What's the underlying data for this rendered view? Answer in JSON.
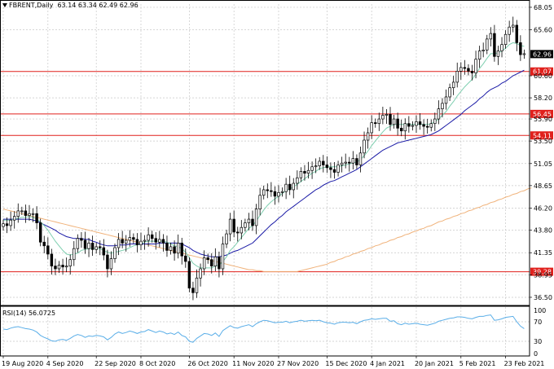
{
  "header": {
    "symbol": "FBRENT",
    "timeframe": ",Daily",
    "ohlc": "63.14 63.34 62.49 62.96"
  },
  "rsi": {
    "label": "RSI(14)",
    "value": "56.0725",
    "levels": [
      70,
      30
    ],
    "tick_labels": [
      "100",
      "70",
      "30",
      "0"
    ]
  },
  "colors": {
    "bull_candle": "#000000",
    "bear_candle": "#000000",
    "ma_fast": "#7ecfb0",
    "ma_mid": "#1a1aa6",
    "ma_slow": "#f0b27a",
    "hline": "#e0201c",
    "rsi_line": "#5aaee8",
    "grid": "#c8c8c8"
  },
  "chart_data": {
    "type": "candlestick",
    "title": "FBRENT,Daily",
    "y_ticks": [
      "68.05",
      "65.60",
      "60.60",
      "58.20",
      "55.90",
      "53.50",
      "51.05",
      "48.65",
      "46.20",
      "43.80",
      "41.35",
      "38.95",
      "36.50"
    ],
    "ylim": [
      35.7,
      68.4
    ],
    "x_tick_labels": [
      "19 Aug 2020",
      "4 Sep 2020",
      "22 Sep 2020",
      "8 Oct 2020",
      "26 Oct 2020",
      "11 Nov 2020",
      "27 Nov 2020",
      "15 Dec 2020",
      "4 Jan 2021",
      "20 Jan 2021",
      "5 Feb 2021",
      "23 Feb 2021"
    ],
    "x_tick_bar_index": [
      0,
      12,
      25,
      37,
      50,
      62,
      74,
      87,
      99,
      111,
      123,
      135
    ],
    "current_price": "62.96",
    "horizontal_lines": [
      {
        "value": 61.07,
        "label": "61.07"
      },
      {
        "value": 56.45,
        "label": "56.45"
      },
      {
        "value": 54.11,
        "label": "54.11"
      },
      {
        "value": 39.28,
        "label": "39.28"
      }
    ],
    "close": [
      44.5,
      44.3,
      44.9,
      45.3,
      45.9,
      45.9,
      45.4,
      45.6,
      45.6,
      44.6,
      42.5,
      42.1,
      41.2,
      39.9,
      39.6,
      40.0,
      39.8,
      39.9,
      40.6,
      41.8,
      42.9,
      42.7,
      41.8,
      42.4,
      41.7,
      42.0,
      41.9,
      41.1,
      39.6,
      40.7,
      41.9,
      42.8,
      42.4,
      42.7,
      43.0,
      42.8,
      42.2,
      42.6,
      42.7,
      43.3,
      42.9,
      42.5,
      42.8,
      42.4,
      41.6,
      42.0,
      41.3,
      42.4,
      41.0,
      40.4,
      37.5,
      37.0,
      38.6,
      39.6,
      40.8,
      40.6,
      39.9,
      40.9,
      39.6,
      42.3,
      43.4,
      45.0,
      43.6,
      43.5,
      44.1,
      44.6,
      45.0,
      44.3,
      46.1,
      47.6,
      48.2,
      48.1,
      48.0,
      47.5,
      47.9,
      48.0,
      48.8,
      48.2,
      48.9,
      49.5,
      50.2,
      50.0,
      50.3,
      50.7,
      50.8,
      51.3,
      50.9,
      50.6,
      50.4,
      50.1,
      50.9,
      51.1,
      51.2,
      51.1,
      51.6,
      50.9,
      52.2,
      53.6,
      54.4,
      55.5,
      55.4,
      55.9,
      56.3,
      56.4,
      55.3,
      55.9,
      54.9,
      54.6,
      55.4,
      55.1,
      55.2,
      55.6,
      55.3,
      55.1,
      55.0,
      55.4,
      55.9,
      57.0,
      57.6,
      58.3,
      59.3,
      59.9,
      61.1,
      61.5,
      61.4,
      61.1,
      60.9,
      62.4,
      63.3,
      63.4,
      64.6,
      65.2,
      62.7,
      63.3,
      64.0,
      65.1,
      65.9,
      66.1,
      64.2,
      62.9,
      63.0
    ],
    "ma_fast": [
      44.9,
      44.9,
      44.9,
      45.0,
      45.1,
      45.2,
      45.2,
      45.3,
      45.2,
      45.0,
      44.7,
      44.3,
      43.8,
      43.2,
      42.6,
      42.1,
      41.6,
      41.2,
      41.1,
      41.2,
      41.3,
      41.6,
      41.7,
      41.8,
      41.8,
      41.8,
      41.8,
      41.6,
      41.4,
      41.3,
      41.4,
      41.5,
      41.6,
      41.7,
      41.9,
      42.1,
      42.2,
      42.3,
      42.5,
      42.6,
      42.6,
      42.6,
      42.6,
      42.6,
      42.5,
      42.3,
      42.1,
      42.0,
      41.8,
      41.4,
      40.8,
      40.2,
      39.9,
      39.7,
      39.7,
      39.7,
      39.7,
      39.9,
      40.0,
      40.4,
      40.9,
      41.6,
      42.0,
      42.5,
      43.0,
      43.5,
      44.0,
      44.3,
      44.8,
      45.4,
      46.0,
      46.5,
      46.9,
      47.2,
      47.5,
      47.8,
      48.1,
      48.3,
      48.5,
      48.8,
      49.1,
      49.4,
      49.7,
      50.0,
      50.2,
      50.5,
      50.6,
      50.7,
      50.7,
      50.7,
      50.7,
      50.8,
      50.9,
      51.0,
      51.1,
      51.2,
      51.5,
      51.9,
      52.4,
      53.0,
      53.5,
      54.0,
      54.5,
      54.9,
      55.1,
      55.3,
      55.3,
      55.3,
      55.3,
      55.3,
      55.3,
      55.3,
      55.3,
      55.3,
      55.3,
      55.4,
      55.6,
      55.9,
      56.3,
      56.7,
      57.3,
      57.8,
      58.4,
      58.9,
      59.4,
      59.8,
      60.2,
      60.8,
      61.4,
      61.9,
      62.5,
      63.0,
      63.0,
      63.1,
      63.3,
      63.6,
      64.0,
      64.2,
      64.1,
      63.9,
      63.8
    ],
    "ma_mid": [
      45.0,
      45.0,
      45.0,
      45.0,
      45.0,
      45.0,
      45.0,
      45.0,
      44.9,
      44.8,
      44.6,
      44.4,
      44.2,
      44.0,
      43.8,
      43.5,
      43.3,
      43.1,
      43.0,
      42.9,
      42.9,
      42.9,
      42.8,
      42.8,
      42.6,
      42.5,
      42.3,
      42.2,
      42.1,
      42.1,
      42.1,
      42.2,
      42.2,
      42.2,
      42.3,
      42.3,
      42.3,
      42.3,
      42.3,
      42.3,
      42.3,
      42.3,
      42.4,
      42.4,
      42.4,
      42.4,
      42.4,
      42.4,
      42.3,
      42.1,
      41.9,
      41.6,
      41.4,
      41.2,
      41.1,
      41.0,
      40.9,
      40.9,
      40.9,
      41.0,
      41.1,
      41.3,
      41.5,
      41.6,
      41.8,
      42.0,
      42.2,
      42.4,
      42.8,
      43.2,
      43.6,
      44.0,
      44.4,
      44.7,
      45.1,
      45.4,
      45.8,
      46.1,
      46.4,
      46.7,
      47.0,
      47.3,
      47.6,
      47.9,
      48.2,
      48.4,
      48.7,
      48.9,
      49.1,
      49.2,
      49.4,
      49.6,
      49.8,
      50.0,
      50.2,
      50.4,
      50.7,
      51.0,
      51.3,
      51.6,
      51.9,
      52.2,
      52.5,
      52.7,
      52.9,
      53.1,
      53.3,
      53.4,
      53.5,
      53.6,
      53.7,
      53.8,
      53.9,
      54.0,
      54.1,
      54.2,
      54.4,
      54.6,
      54.9,
      55.2,
      55.5,
      55.8,
      56.1,
      56.4,
      56.8,
      57.1,
      57.4,
      57.7,
      58.1,
      58.4,
      58.8,
      59.1,
      59.3,
      59.5,
      59.8,
      60.0,
      60.3,
      60.6,
      60.8,
      61.0,
      61.2
    ],
    "ma_slow": [
      46.1,
      46.0,
      45.9,
      45.8,
      45.7,
      45.6,
      45.5,
      45.4,
      45.3,
      45.2,
      45.1,
      45.0,
      44.9,
      44.8,
      44.7,
      44.6,
      44.5,
      44.4,
      44.3,
      44.2,
      44.1,
      44.0,
      43.9,
      43.8,
      43.7,
      43.6,
      43.5,
      43.4,
      43.3,
      43.2,
      43.1,
      43.0,
      42.9,
      42.8,
      42.7,
      42.6,
      42.5,
      42.4,
      42.3,
      42.2,
      42.1,
      42.0,
      41.9,
      41.8,
      41.7,
      41.6,
      41.5,
      41.4,
      41.3,
      41.2,
      41.1,
      41.0,
      40.9,
      40.8,
      40.7,
      40.6,
      40.5,
      40.4,
      40.3,
      40.2,
      40.1,
      40.0,
      39.9,
      39.8,
      39.7,
      39.6,
      39.5,
      39.5,
      39.4,
      39.4,
      39.3,
      39.3,
      39.3,
      39.3,
      39.3,
      39.3,
      39.3,
      39.3,
      39.3,
      39.3,
      39.4,
      39.5,
      39.6,
      39.7,
      39.8,
      39.9,
      40.0,
      40.1,
      40.3,
      40.4,
      40.6,
      40.7,
      40.9,
      41.0,
      41.2,
      41.3,
      41.5,
      41.6,
      41.8,
      41.9,
      42.1,
      42.2,
      42.4,
      42.5,
      42.7,
      42.8,
      43.0,
      43.1,
      43.3,
      43.4,
      43.6,
      43.7,
      43.9,
      44.0,
      44.2,
      44.3,
      44.5,
      44.7,
      44.8,
      45.0,
      45.1,
      45.3,
      45.4,
      45.6,
      45.7,
      45.9,
      46.0,
      46.2,
      46.3,
      46.5,
      46.6,
      46.8,
      46.9,
      47.1,
      47.2,
      47.4,
      47.5,
      47.7,
      47.8,
      48.0,
      48.1,
      48.3,
      48.4
    ],
    "rsi": [
      55,
      54,
      57,
      59,
      60,
      58,
      56,
      55,
      53,
      49,
      42,
      38,
      35,
      31,
      30,
      33,
      34,
      32,
      36,
      41,
      44,
      42,
      38,
      41,
      40,
      42,
      41,
      39,
      33,
      38,
      45,
      49,
      46,
      48,
      51,
      49,
      46,
      49,
      50,
      54,
      51,
      48,
      51,
      49,
      45,
      47,
      44,
      49,
      42,
      39,
      30,
      28,
      36,
      41,
      46,
      45,
      42,
      47,
      40,
      52,
      57,
      62,
      58,
      57,
      60,
      62,
      64,
      60,
      66,
      70,
      73,
      72,
      70,
      68,
      69,
      69,
      71,
      68,
      70,
      71,
      73,
      71,
      72,
      73,
      72,
      73,
      70,
      68,
      67,
      65,
      68,
      69,
      69,
      68,
      69,
      66,
      70,
      73,
      74,
      76,
      75,
      76,
      77,
      77,
      71,
      72,
      66,
      64,
      67,
      65,
      66,
      67,
      65,
      64,
      63,
      65,
      67,
      71,
      73,
      75,
      77,
      78,
      80,
      80,
      79,
      77,
      76,
      79,
      81,
      81,
      83,
      84,
      73,
      74,
      76,
      79,
      80,
      81,
      70,
      61,
      56
    ]
  }
}
